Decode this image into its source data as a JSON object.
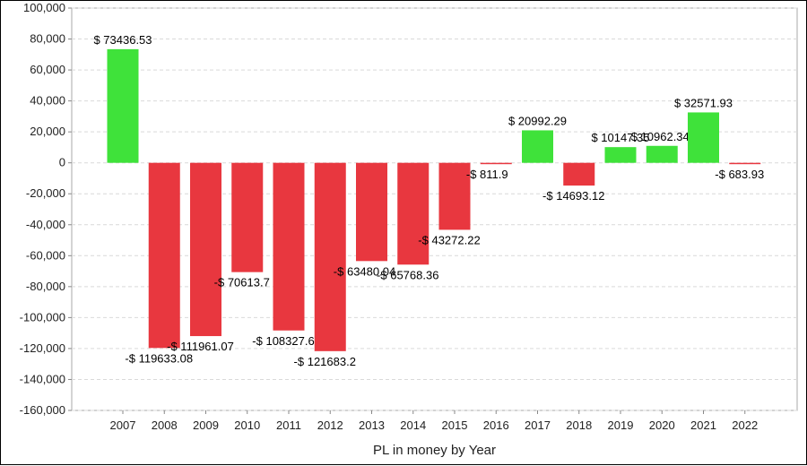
{
  "chart_data": {
    "type": "bar",
    "title": "",
    "xlabel": "PL in money by Year",
    "ylabel": "",
    "categories": [
      "2007",
      "2008",
      "2009",
      "2010",
      "2011",
      "2012",
      "2013",
      "2014",
      "2015",
      "2016",
      "2017",
      "2018",
      "2019",
      "2020",
      "2021",
      "2022"
    ],
    "values": [
      73436.53,
      -119633.08,
      -111961.07,
      -70613.7,
      -108327.6,
      -121683.2,
      -63480.04,
      -65768.36,
      -43272.22,
      -811.9,
      20992.29,
      -14693.12,
      10147.35,
      10962.34,
      32571.93,
      -683.93
    ],
    "data_labels": [
      "$ 73436.53",
      "-$ 119633.08",
      "-$ 111961.07",
      "-$ 70613.7",
      "-$ 108327.6",
      "-$ 121683.2",
      "-$ 63480.04",
      "-$ 65768.36",
      "-$ 43272.22",
      "-$ 811.9",
      "$ 20992.29",
      "-$ 14693.12",
      "$ 10147.35",
      "$ 10962.34",
      "$ 32571.93",
      "-$ 683.93"
    ],
    "ylim": [
      -160000,
      100000
    ],
    "yticks": [
      100000,
      80000,
      60000,
      40000,
      20000,
      0,
      -20000,
      -40000,
      -60000,
      -80000,
      -100000,
      -120000,
      -140000,
      -160000
    ],
    "ytick_labels": [
      "100,000",
      "80,000",
      "60,000",
      "40,000",
      "20,000",
      "0",
      "-20,000",
      "-40,000",
      "-60,000",
      "-80,000",
      "-100,000",
      "-120,000",
      "-140,000",
      "-160,000"
    ],
    "grid": true,
    "colors": {
      "positive": "#3fe23a",
      "negative": "#e8373f",
      "grid": "#d9d9d9",
      "axis": "#aaaaaa"
    }
  }
}
